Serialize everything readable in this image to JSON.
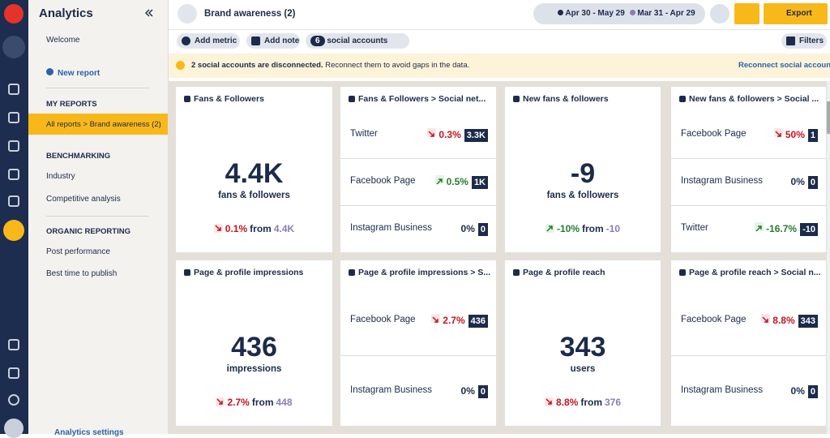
{
  "sidebar": {
    "title": "Analytics",
    "welcome": "Welcome",
    "new_report": "New report",
    "sections": [
      {
        "heading": "MY REPORTS",
        "items": [
          "All reports > Brand awareness (2)"
        ]
      },
      {
        "heading": "BENCHMARKING",
        "items": [
          "Industry",
          "Competitive analysis"
        ]
      },
      {
        "heading": "ORGANIC REPORTING",
        "items": [
          "Post performance",
          "Best time to publish"
        ]
      }
    ],
    "settings": "Analytics settings"
  },
  "header": {
    "title": "Brand awareness (2)",
    "date_range": "Apr 30 - May 29",
    "compare_range": "Mar 31 - Apr 29",
    "export": "Export"
  },
  "toolbar": {
    "add_metric": "Add metric",
    "add_note": "Add note",
    "accounts_count": "6",
    "accounts": "social accounts",
    "filters": "Filters"
  },
  "alert": {
    "bold": "2 social accounts are disconnected.",
    "text": "Reconnect them to avoid gaps in the data.",
    "link": "Reconnect social accounts"
  },
  "cards": [
    {
      "kind": "big",
      "title": "Fans & Followers",
      "value": "4.4K",
      "label": "fans & followers",
      "change": "0.1%",
      "trend": "down",
      "from_label": "from",
      "previous": "4.4K"
    },
    {
      "kind": "list",
      "title": "Fans & Followers > Social net...",
      "rows": [
        {
          "name": "Twitter",
          "change": "0.3%",
          "trend": "down",
          "value": "3.3K"
        },
        {
          "name": "Facebook Page",
          "change": "0.5%",
          "trend": "up",
          "value": "1K"
        },
        {
          "name": "Instagram Business",
          "change": "0%",
          "trend": "flat",
          "value": "0"
        }
      ]
    },
    {
      "kind": "big",
      "title": "New fans & followers",
      "value": "-9",
      "label": "fans & followers",
      "change": "-10%",
      "trend": "up",
      "from_label": "from",
      "previous": "-10"
    },
    {
      "kind": "list",
      "title": "New fans & followers > Social ...",
      "rows": [
        {
          "name": "Facebook Page",
          "change": "50%",
          "trend": "down",
          "value": "1"
        },
        {
          "name": "Instagram Business",
          "change": "0%",
          "trend": "flat",
          "value": "0"
        },
        {
          "name": "Twitter",
          "change": "-16.7%",
          "trend": "up",
          "value": "-10"
        }
      ]
    },
    {
      "kind": "big",
      "title": "Page & profile impressions",
      "value": "436",
      "label": "impressions",
      "change": "2.7%",
      "trend": "down",
      "from_label": "from",
      "previous": "448"
    },
    {
      "kind": "list",
      "title": "Page & profile impressions > S...",
      "rows": [
        {
          "name": "Facebook Page",
          "change": "2.7%",
          "trend": "down",
          "value": "436"
        },
        {
          "name": "Instagram Business",
          "change": "0%",
          "trend": "flat",
          "value": "0"
        }
      ]
    },
    {
      "kind": "big",
      "title": "Page & profile reach",
      "value": "343",
      "label": "users",
      "change": "8.8%",
      "trend": "down",
      "from_label": "from",
      "previous": "376"
    },
    {
      "kind": "list",
      "title": "Page & profile reach > Social n...",
      "rows": [
        {
          "name": "Facebook Page",
          "change": "8.8%",
          "trend": "down",
          "value": "343"
        },
        {
          "name": "Instagram Business",
          "change": "0%",
          "trend": "flat",
          "value": "0"
        }
      ]
    }
  ]
}
